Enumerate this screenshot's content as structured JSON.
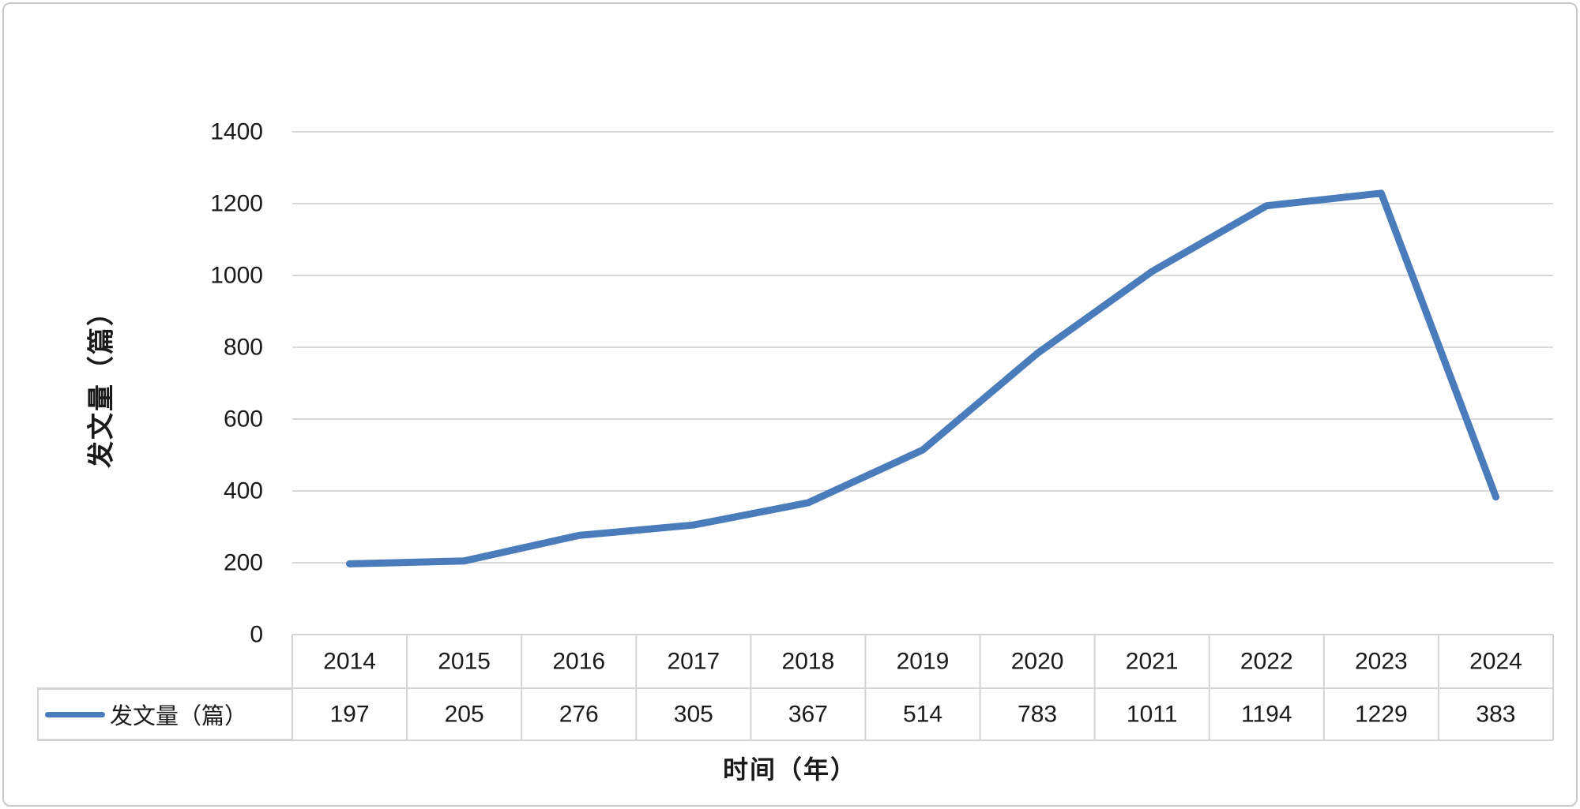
{
  "chart_data": {
    "type": "line",
    "title": "",
    "categories": [
      "2014",
      "2015",
      "2016",
      "2017",
      "2018",
      "2019",
      "2020",
      "2021",
      "2022",
      "2023",
      "2024"
    ],
    "series": [
      {
        "name": "发文量（篇）",
        "values": [
          197,
          205,
          276,
          305,
          367,
          514,
          783,
          1011,
          1194,
          1229,
          383
        ]
      }
    ],
    "xlabel": "时间（年）",
    "ylabel": "发文量（篇）",
    "ylim": [
      0,
      1400
    ],
    "yticks": [
      0,
      200,
      400,
      600,
      800,
      1000,
      1200,
      1400
    ],
    "grid": true,
    "legend_position": "data-table-row-left",
    "data_table_shown": true,
    "colors": {
      "line": "#4a7cbc",
      "gridline": "#d9d9d9",
      "table_border": "#d3d3d3",
      "frame_border": "#c8c8c8",
      "text": "#1a1a1a",
      "background": "#ffffff"
    }
  }
}
